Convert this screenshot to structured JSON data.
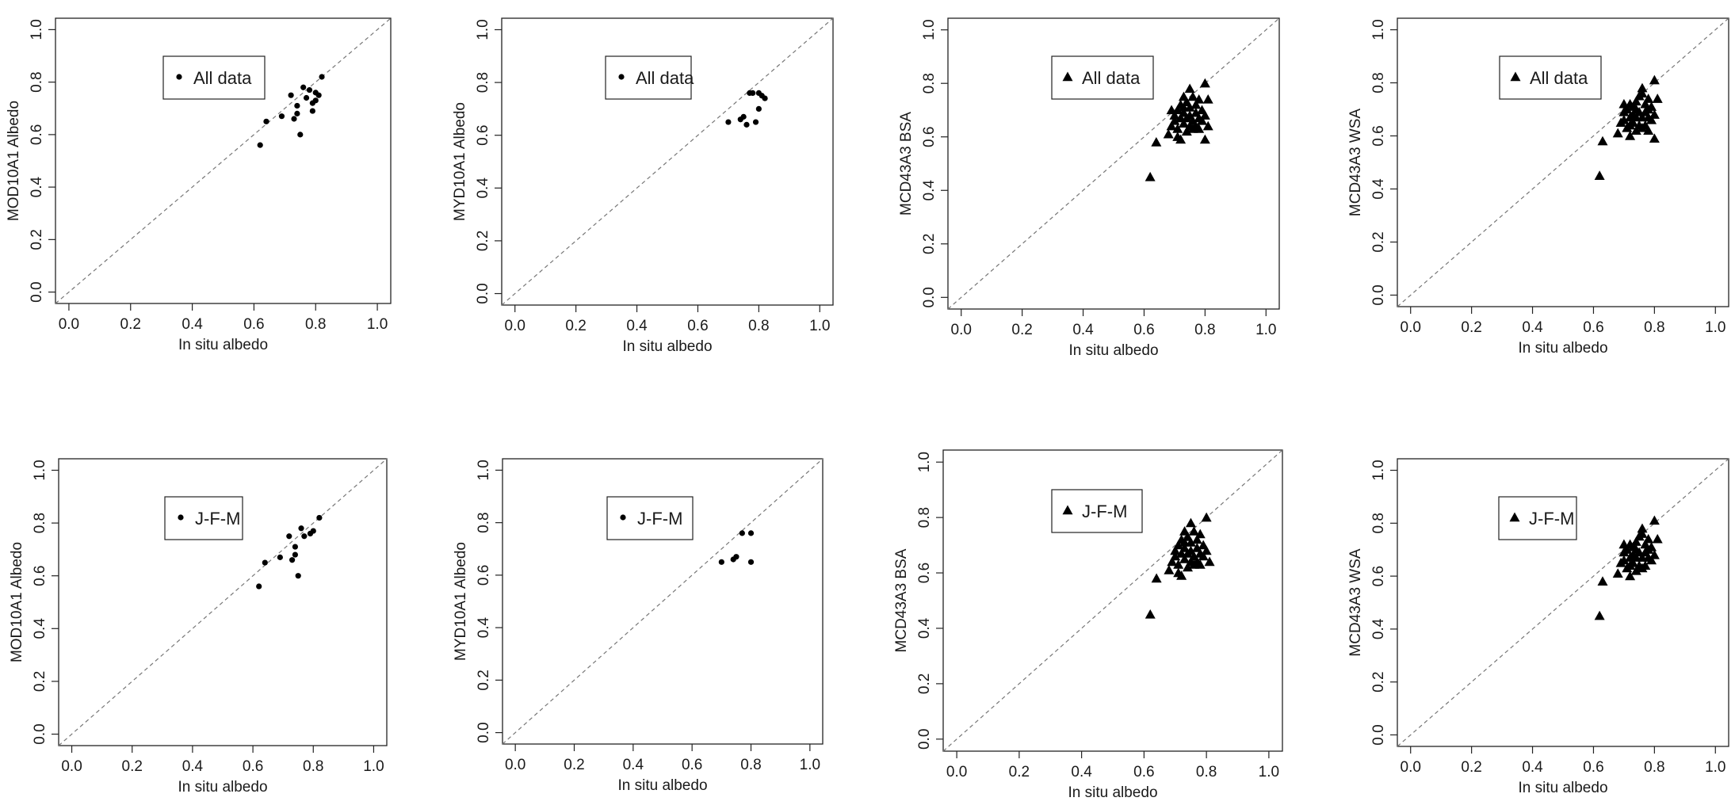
{
  "chart_data": [
    {
      "id": "p1",
      "type": "scatter",
      "marker": "circle",
      "xlabel": "In situ albedo",
      "ylabel": "MOD10A1 Albedo",
      "xlim": [
        0,
        1
      ],
      "ylim": [
        0,
        1
      ],
      "xticks": [
        "0.0",
        "0.2",
        "0.4",
        "0.6",
        "0.8",
        "1.0"
      ],
      "yticks": [
        "0.0",
        "0.2",
        "0.4",
        "0.6",
        "0.8",
        "1.0"
      ],
      "legend": "All data",
      "legend_position": "top-center",
      "reference_line": "1:1 dashed",
      "x": [
        0.62,
        0.64,
        0.69,
        0.72,
        0.73,
        0.74,
        0.74,
        0.75,
        0.76,
        0.77,
        0.78,
        0.79,
        0.79,
        0.8,
        0.8,
        0.81,
        0.82
      ],
      "y": [
        0.56,
        0.65,
        0.67,
        0.75,
        0.66,
        0.71,
        0.68,
        0.6,
        0.78,
        0.74,
        0.77,
        0.69,
        0.72,
        0.76,
        0.73,
        0.75,
        0.82
      ]
    },
    {
      "id": "p2",
      "type": "scatter",
      "marker": "circle",
      "xlabel": "In situ albedo",
      "ylabel": "MYD10A1 Albedo",
      "xlim": [
        0,
        1
      ],
      "ylim": [
        0,
        1
      ],
      "xticks": [
        "0.0",
        "0.2",
        "0.4",
        "0.6",
        "0.8",
        "1.0"
      ],
      "yticks": [
        "0.0",
        "0.2",
        "0.4",
        "0.6",
        "0.8",
        "1.0"
      ],
      "legend": "All data",
      "legend_position": "top-center",
      "reference_line": "1:1 dashed",
      "x": [
        0.7,
        0.74,
        0.75,
        0.76,
        0.77,
        0.78,
        0.79,
        0.8,
        0.8,
        0.81,
        0.82
      ],
      "y": [
        0.65,
        0.66,
        0.67,
        0.64,
        0.76,
        0.76,
        0.65,
        0.7,
        0.76,
        0.75,
        0.74
      ]
    },
    {
      "id": "p3",
      "type": "scatter",
      "marker": "triangle",
      "xlabel": "In situ albedo",
      "ylabel": "MCD43A3 BSA",
      "xlim": [
        0,
        1
      ],
      "ylim": [
        0,
        1
      ],
      "xticks": [
        "0.0",
        "0.2",
        "0.4",
        "0.6",
        "0.8",
        "1.0"
      ],
      "yticks": [
        "0.0",
        "0.2",
        "0.4",
        "0.6",
        "0.8",
        "1.0"
      ],
      "legend": "All data",
      "legend_position": "top-center",
      "reference_line": "1:1 dashed",
      "x": [
        0.62,
        0.64,
        0.68,
        0.69,
        0.7,
        0.7,
        0.71,
        0.71,
        0.72,
        0.72,
        0.72,
        0.73,
        0.73,
        0.73,
        0.74,
        0.74,
        0.74,
        0.75,
        0.75,
        0.75,
        0.75,
        0.76,
        0.76,
        0.76,
        0.77,
        0.77,
        0.77,
        0.78,
        0.78,
        0.78,
        0.79,
        0.79,
        0.8,
        0.8,
        0.8,
        0.81,
        0.81,
        0.71,
        0.73,
        0.69
      ],
      "y": [
        0.45,
        0.58,
        0.61,
        0.64,
        0.68,
        0.66,
        0.7,
        0.63,
        0.59,
        0.67,
        0.72,
        0.65,
        0.69,
        0.71,
        0.62,
        0.67,
        0.73,
        0.64,
        0.68,
        0.71,
        0.78,
        0.63,
        0.66,
        0.75,
        0.69,
        0.72,
        0.64,
        0.67,
        0.74,
        0.63,
        0.7,
        0.66,
        0.8,
        0.68,
        0.59,
        0.64,
        0.74,
        0.6,
        0.75,
        0.7
      ]
    },
    {
      "id": "p4",
      "type": "scatter",
      "marker": "triangle",
      "xlabel": "In situ albedo",
      "ylabel": "MCD43A3 WSA",
      "xlim": [
        0,
        1
      ],
      "ylim": [
        0,
        1
      ],
      "xticks": [
        "0.0",
        "0.2",
        "0.4",
        "0.6",
        "0.8",
        "1.0"
      ],
      "yticks": [
        "0.0",
        "0.2",
        "0.4",
        "0.6",
        "0.8",
        "1.0"
      ],
      "legend": "All data",
      "legend_position": "top-center",
      "reference_line": "1:1 dashed",
      "x": [
        0.62,
        0.63,
        0.68,
        0.69,
        0.7,
        0.7,
        0.71,
        0.71,
        0.72,
        0.72,
        0.72,
        0.73,
        0.73,
        0.73,
        0.74,
        0.74,
        0.74,
        0.75,
        0.75,
        0.75,
        0.76,
        0.76,
        0.76,
        0.77,
        0.77,
        0.77,
        0.78,
        0.78,
        0.78,
        0.79,
        0.79,
        0.8,
        0.8,
        0.8,
        0.81,
        0.7,
        0.72,
        0.74,
        0.76,
        0.78
      ],
      "y": [
        0.45,
        0.58,
        0.61,
        0.65,
        0.69,
        0.66,
        0.7,
        0.63,
        0.6,
        0.67,
        0.72,
        0.65,
        0.68,
        0.71,
        0.62,
        0.67,
        0.73,
        0.64,
        0.69,
        0.75,
        0.63,
        0.67,
        0.78,
        0.69,
        0.72,
        0.64,
        0.67,
        0.74,
        0.7,
        0.66,
        0.71,
        0.81,
        0.68,
        0.59,
        0.74,
        0.72,
        0.64,
        0.7,
        0.76,
        0.62
      ]
    },
    {
      "id": "p5",
      "type": "scatter",
      "marker": "circle",
      "xlabel": "In situ albedo",
      "ylabel": "MOD10A1 Albedo",
      "xlim": [
        0,
        1
      ],
      "ylim": [
        0,
        1
      ],
      "xticks": [
        "0.0",
        "0.2",
        "0.4",
        "0.6",
        "0.8",
        "1.0"
      ],
      "yticks": [
        "0.0",
        "0.2",
        "0.4",
        "0.6",
        "0.8",
        "1.0"
      ],
      "legend": "J-F-M",
      "legend_position": "top-center",
      "reference_line": "1:1 dashed",
      "x": [
        0.62,
        0.64,
        0.69,
        0.72,
        0.73,
        0.74,
        0.74,
        0.75,
        0.76,
        0.77,
        0.79,
        0.8,
        0.82
      ],
      "y": [
        0.56,
        0.65,
        0.67,
        0.75,
        0.66,
        0.71,
        0.68,
        0.6,
        0.78,
        0.75,
        0.76,
        0.77,
        0.82
      ]
    },
    {
      "id": "p6",
      "type": "scatter",
      "marker": "circle",
      "xlabel": "In situ albedo",
      "ylabel": "MYD10A1 Albedo",
      "xlim": [
        0,
        1
      ],
      "ylim": [
        0,
        1
      ],
      "xticks": [
        "0.0",
        "0.2",
        "0.4",
        "0.6",
        "0.8",
        "1.0"
      ],
      "yticks": [
        "0.0",
        "0.2",
        "0.4",
        "0.6",
        "0.8",
        "1.0"
      ],
      "legend": "J-F-M",
      "legend_position": "top-center",
      "reference_line": "1:1 dashed",
      "x": [
        0.7,
        0.74,
        0.75,
        0.77,
        0.8,
        0.8
      ],
      "y": [
        0.65,
        0.66,
        0.67,
        0.76,
        0.76,
        0.65
      ]
    },
    {
      "id": "p7",
      "type": "scatter",
      "marker": "triangle",
      "xlabel": "In situ albedo",
      "ylabel": "MCD43A3 BSA",
      "xlim": [
        0,
        1
      ],
      "ylim": [
        0,
        1
      ],
      "xticks": [
        "0.0",
        "0.2",
        "0.4",
        "0.6",
        "0.8",
        "1.0"
      ],
      "yticks": [
        "0.0",
        "0.2",
        "0.4",
        "0.6",
        "0.8",
        "1.0"
      ],
      "legend": "J-F-M",
      "legend_position": "top-center",
      "reference_line": "1:1 dashed",
      "x": [
        0.62,
        0.64,
        0.68,
        0.69,
        0.7,
        0.7,
        0.71,
        0.71,
        0.72,
        0.72,
        0.72,
        0.73,
        0.73,
        0.73,
        0.74,
        0.74,
        0.74,
        0.75,
        0.75,
        0.75,
        0.75,
        0.76,
        0.76,
        0.76,
        0.77,
        0.77,
        0.77,
        0.78,
        0.78,
        0.78,
        0.79,
        0.79,
        0.8,
        0.8,
        0.81,
        0.71,
        0.73
      ],
      "y": [
        0.45,
        0.58,
        0.61,
        0.64,
        0.68,
        0.66,
        0.7,
        0.63,
        0.59,
        0.67,
        0.72,
        0.65,
        0.69,
        0.71,
        0.62,
        0.67,
        0.73,
        0.64,
        0.68,
        0.71,
        0.78,
        0.63,
        0.66,
        0.75,
        0.69,
        0.72,
        0.64,
        0.67,
        0.74,
        0.63,
        0.7,
        0.66,
        0.8,
        0.68,
        0.64,
        0.6,
        0.75
      ]
    },
    {
      "id": "p8",
      "type": "scatter",
      "marker": "triangle",
      "xlabel": "In situ albedo",
      "ylabel": "MCD43A3 WSA",
      "xlim": [
        0,
        1
      ],
      "ylim": [
        0,
        1
      ],
      "xticks": [
        "0.0",
        "0.2",
        "0.4",
        "0.6",
        "0.8",
        "1.0"
      ],
      "yticks": [
        "0.0",
        "0.2",
        "0.4",
        "0.6",
        "0.8",
        "1.0"
      ],
      "legend": "J-F-M",
      "legend_position": "top-center",
      "reference_line": "1:1 dashed",
      "x": [
        0.62,
        0.63,
        0.68,
        0.69,
        0.7,
        0.7,
        0.71,
        0.71,
        0.72,
        0.72,
        0.72,
        0.73,
        0.73,
        0.73,
        0.74,
        0.74,
        0.74,
        0.75,
        0.75,
        0.75,
        0.76,
        0.76,
        0.76,
        0.77,
        0.77,
        0.77,
        0.78,
        0.78,
        0.78,
        0.79,
        0.79,
        0.8,
        0.8,
        0.81,
        0.7,
        0.72,
        0.74,
        0.76
      ],
      "y": [
        0.45,
        0.58,
        0.61,
        0.65,
        0.69,
        0.66,
        0.7,
        0.63,
        0.6,
        0.67,
        0.72,
        0.65,
        0.68,
        0.71,
        0.62,
        0.67,
        0.73,
        0.64,
        0.69,
        0.75,
        0.63,
        0.67,
        0.78,
        0.69,
        0.72,
        0.64,
        0.67,
        0.74,
        0.7,
        0.66,
        0.71,
        0.81,
        0.68,
        0.74,
        0.72,
        0.64,
        0.7,
        0.76
      ]
    }
  ]
}
